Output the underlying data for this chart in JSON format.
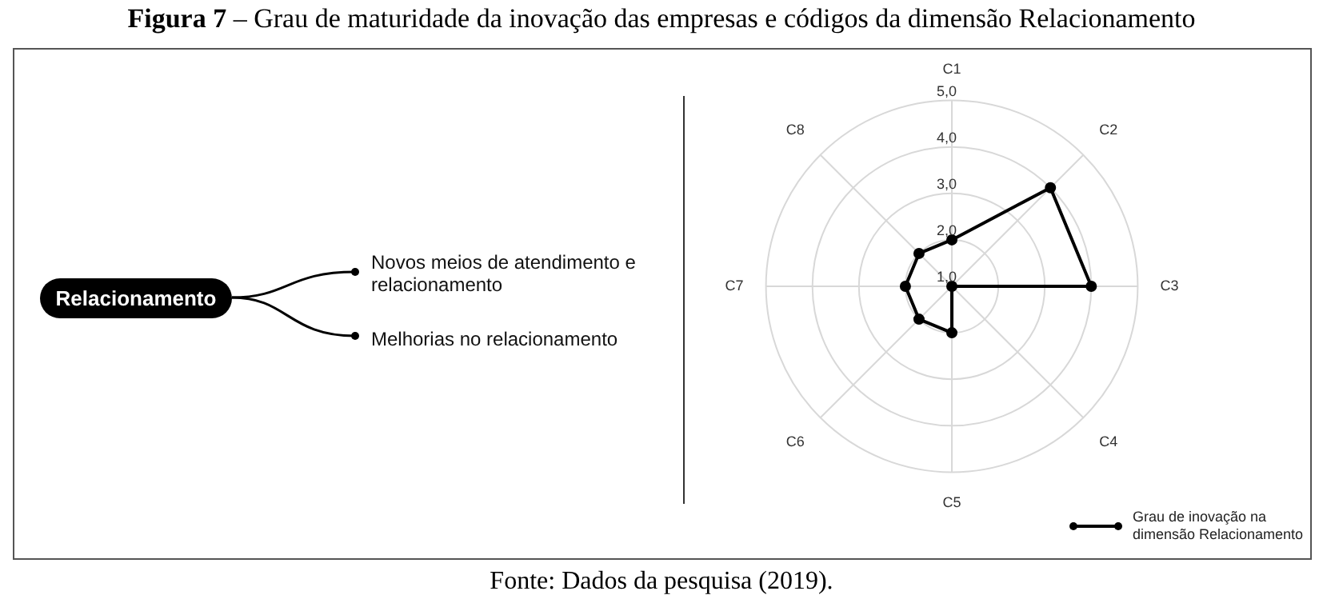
{
  "chart_data": {
    "type": "radar",
    "title": "Figura 7 – Grau de maturidade da inovação das empresas e códigos da dimensão Relacionamento",
    "categories": [
      "C1",
      "C2",
      "C3",
      "C4",
      "C5",
      "C6",
      "C7",
      "C8"
    ],
    "series": [
      {
        "name": "Grau de inovação na dimensão Relacionamento",
        "color": "#000000",
        "values": [
          2.0,
          4.0,
          4.0,
          1.0,
          2.0,
          2.0,
          2.0,
          2.0
        ]
      }
    ],
    "ylim": [
      1,
      5
    ],
    "yticks": [
      {
        "value": 1,
        "label": "1,0"
      },
      {
        "value": 2,
        "label": "2,0"
      },
      {
        "value": 3,
        "label": "3,0"
      },
      {
        "value": 4,
        "label": "4,0"
      },
      {
        "value": 5,
        "label": "5,0"
      }
    ],
    "grid": true,
    "marker": "circle",
    "legend": "bottom right",
    "annotations": [
      "Relacionamento",
      "Novos meios de atendimento e relacionamento",
      "Melhorias no relacionamento",
      "Fonte: Dados da pesquisa (2019)."
    ]
  }
}
